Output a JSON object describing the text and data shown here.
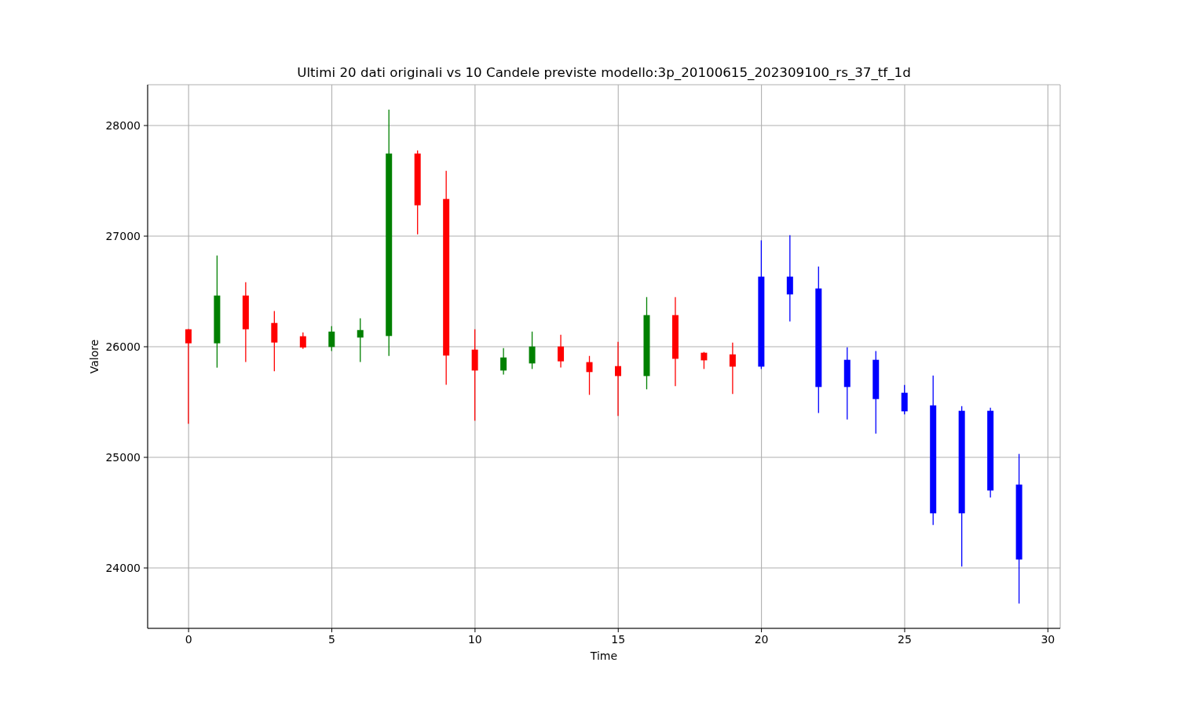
{
  "chart_data": {
    "type": "candlestick",
    "title": "Ultimi 20 dati originali vs 10 Candele previste modello:3p_20100615_202309100_rs_37_tf_1d",
    "xlabel": "Time",
    "ylabel": "Valore",
    "x": [
      0,
      1,
      2,
      3,
      4,
      5,
      6,
      7,
      8,
      9,
      10,
      11,
      12,
      13,
      14,
      15,
      16,
      17,
      18,
      19,
      20,
      21,
      22,
      23,
      24,
      25,
      26,
      27,
      28,
      29
    ],
    "ohlc": [
      [
        26158,
        26160,
        25303,
        26031
      ],
      [
        26031,
        26825,
        25811,
        26463
      ],
      [
        26463,
        26584,
        25861,
        26158
      ],
      [
        26215,
        26322,
        25778,
        26038
      ],
      [
        26095,
        26130,
        25981,
        25993
      ],
      [
        25998,
        26187,
        25962,
        26137
      ],
      [
        26083,
        26258,
        25861,
        26151
      ],
      [
        26097,
        28144,
        25917,
        27747
      ],
      [
        27747,
        27775,
        27017,
        27279
      ],
      [
        27336,
        27591,
        25657,
        25920
      ],
      [
        25974,
        26158,
        25331,
        25785
      ],
      [
        25785,
        25988,
        25749,
        25903
      ],
      [
        25849,
        26137,
        25799,
        26002
      ],
      [
        26002,
        26109,
        25813,
        25868
      ],
      [
        25861,
        25917,
        25565,
        25771
      ],
      [
        25825,
        26045,
        25374,
        25735
      ],
      [
        25735,
        26449,
        25615,
        26286
      ],
      [
        26286,
        26449,
        25643,
        25891
      ],
      [
        25946,
        25953,
        25799,
        25877
      ],
      [
        25931,
        26038,
        25572,
        25820
      ],
      [
        25820,
        26962,
        25799,
        26634
      ],
      [
        26634,
        27009,
        26229,
        26473
      ],
      [
        26527,
        26726,
        25400,
        25636
      ],
      [
        25636,
        25995,
        25343,
        25882
      ],
      [
        25882,
        25962,
        25215,
        25527
      ],
      [
        25584,
        25655,
        25388,
        25416
      ],
      [
        25470,
        25740,
        24388,
        24494
      ],
      [
        24494,
        25463,
        24012,
        25421
      ],
      [
        25421,
        25449,
        24636,
        24700
      ],
      [
        24754,
        25031,
        23678,
        24076
      ]
    ],
    "colors": [
      "#ff0000",
      "#008000",
      "#ff0000",
      "#ff0000",
      "#ff0000",
      "#008000",
      "#008000",
      "#008000",
      "#ff0000",
      "#ff0000",
      "#ff0000",
      "#008000",
      "#008000",
      "#ff0000",
      "#ff0000",
      "#ff0000",
      "#008000",
      "#ff0000",
      "#ff0000",
      "#ff0000",
      "#0000ff",
      "#0000ff",
      "#0000ff",
      "#0000ff",
      "#0000ff",
      "#0000ff",
      "#0000ff",
      "#0000ff",
      "#0000ff",
      "#0000ff"
    ],
    "xlim": [
      -1.43,
      30.43
    ],
    "ylim": [
      23454,
      28369
    ],
    "xticks": [
      0,
      5,
      10,
      15,
      20,
      25,
      30
    ],
    "yticks": [
      24000,
      25000,
      26000,
      27000,
      28000
    ],
    "grid": true
  }
}
